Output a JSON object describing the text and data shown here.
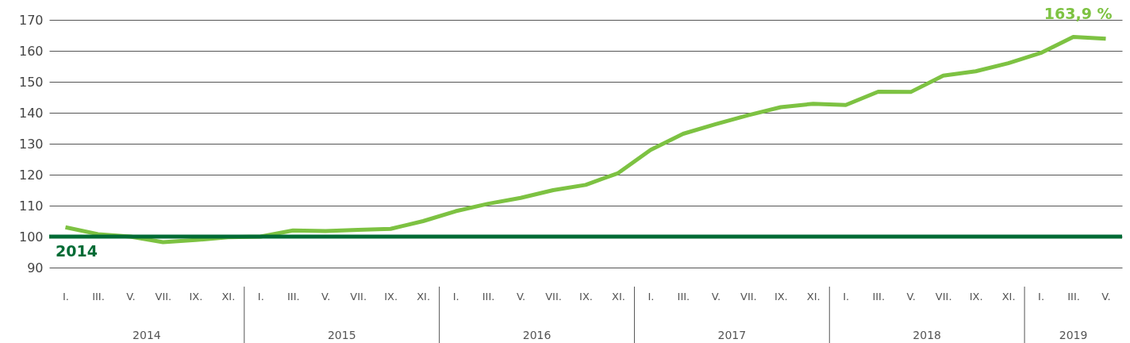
{
  "chart_data": {
    "type": "line",
    "categories": [
      "I.",
      "III.",
      "V.",
      "VII.",
      "IX.",
      "XI.",
      "I.",
      "III.",
      "V.",
      "VII.",
      "IX.",
      "XI.",
      "I.",
      "III.",
      "V.",
      "VII.",
      "IX.",
      "XI.",
      "I.",
      "III.",
      "V.",
      "VII.",
      "IX.",
      "XI.",
      "I.",
      "III.",
      "V.",
      "VII.",
      "IX.",
      "XI.",
      "I.",
      "III.",
      "V."
    ],
    "series": [
      {
        "color": "#7dc242",
        "values": [
          103,
          100.8,
          100,
          98.2,
          98.9,
          99.8,
          100,
          102,
          101.8,
          102.2,
          102.5,
          105,
          108.2,
          110.6,
          112.5,
          115,
          116.7,
          120.5,
          128,
          133.2,
          136.3,
          139.2,
          141.8,
          142.9,
          142.5,
          146.8,
          146.7,
          152,
          153.4,
          156,
          159.3,
          164.5,
          163.9
        ]
      }
    ],
    "ylim": [
      90,
      170
    ],
    "yticks": [
      90,
      100,
      110,
      120,
      130,
      140,
      150,
      160,
      170
    ],
    "grid": "y",
    "marker": "none",
    "line_style": "solid",
    "ref_lines": [
      {
        "axis": "y",
        "value": 100,
        "color": "#006b35"
      }
    ],
    "annotations": [
      "2014",
      "2015",
      "2016",
      "2017",
      "2018",
      "2019",
      {
        "text": "2014",
        "y": 100
      },
      "163,9 %"
    ]
  }
}
